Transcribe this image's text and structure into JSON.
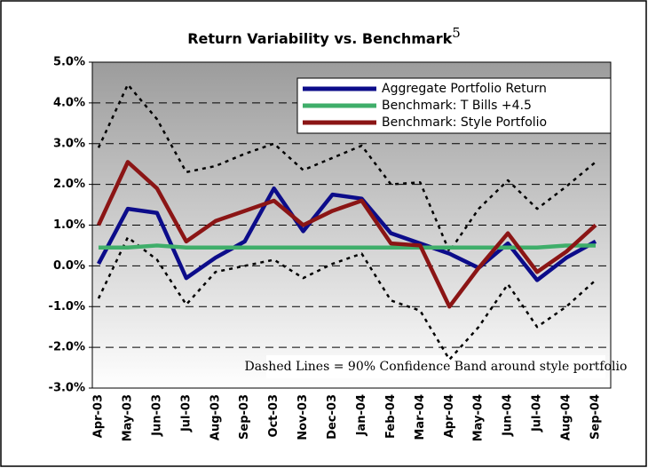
{
  "chart_data": {
    "type": "line",
    "title": "Return Variability vs. Benchmark",
    "title_note": "5",
    "annotation": "Dashed Lines = 90% Confidence Band around style portfolio",
    "categories": [
      "Apr-03",
      "May-03",
      "Jun-03",
      "Jul-03",
      "Aug-03",
      "Sep-03",
      "Oct-03",
      "Nov-03",
      "Dec-03",
      "Jan-04",
      "Feb-04",
      "Mar-04",
      "Apr-04",
      "May-04",
      "Jun-04",
      "Jul-04",
      "Aug-04",
      "Sep-04"
    ],
    "series": [
      {
        "name": "Aggregate Portfolio Return",
        "color": "#0c0c8a",
        "values": [
          0.05,
          1.4,
          1.3,
          -0.3,
          0.2,
          0.6,
          1.9,
          0.85,
          1.75,
          1.65,
          0.8,
          0.55,
          0.3,
          -0.05,
          0.55,
          -0.35,
          0.2,
          0.6
        ]
      },
      {
        "name": "Benchmark: T Bills +4.5",
        "color": "#3fae6a",
        "values": [
          0.45,
          0.45,
          0.5,
          0.45,
          0.45,
          0.45,
          0.45,
          0.45,
          0.45,
          0.45,
          0.45,
          0.45,
          0.45,
          0.45,
          0.45,
          0.45,
          0.5,
          0.5
        ]
      },
      {
        "name": "Benchmark: Style Portfolio",
        "color": "#8b1515",
        "values": [
          1.0,
          2.55,
          1.9,
          0.6,
          1.1,
          1.35,
          1.6,
          1.0,
          1.35,
          1.6,
          0.55,
          0.5,
          -1.0,
          -0.05,
          0.8,
          -0.15,
          0.35,
          1.0
        ]
      }
    ],
    "bands": [
      {
        "color": "#000000",
        "values": [
          2.9,
          4.45,
          3.6,
          2.3,
          2.45,
          2.75,
          3.0,
          2.35,
          2.65,
          2.95,
          2.0,
          2.05,
          0.35,
          1.4,
          2.1,
          1.4,
          1.95,
          2.55
        ]
      },
      {
        "color": "#000000",
        "values": [
          -0.8,
          0.7,
          0.15,
          -0.95,
          -0.15,
          0.0,
          0.15,
          -0.3,
          0.05,
          0.3,
          -0.85,
          -1.1,
          -2.3,
          -1.5,
          -0.45,
          -1.5,
          -1.0,
          -0.35
        ]
      }
    ],
    "ylim": [
      -3,
      5
    ],
    "yticks": [
      {
        "value": -3,
        "label": "-3.0%"
      },
      {
        "value": -2,
        "label": "-2.0%"
      },
      {
        "value": -1,
        "label": "-1.0%"
      },
      {
        "value": 0,
        "label": "0.0%"
      },
      {
        "value": 1,
        "label": "1.0%"
      },
      {
        "value": 2,
        "label": "2.0%"
      },
      {
        "value": 3,
        "label": "3.0%"
      },
      {
        "value": 4,
        "label": "4.0%"
      },
      {
        "value": 5,
        "label": "5.0%"
      }
    ],
    "grid": true
  }
}
